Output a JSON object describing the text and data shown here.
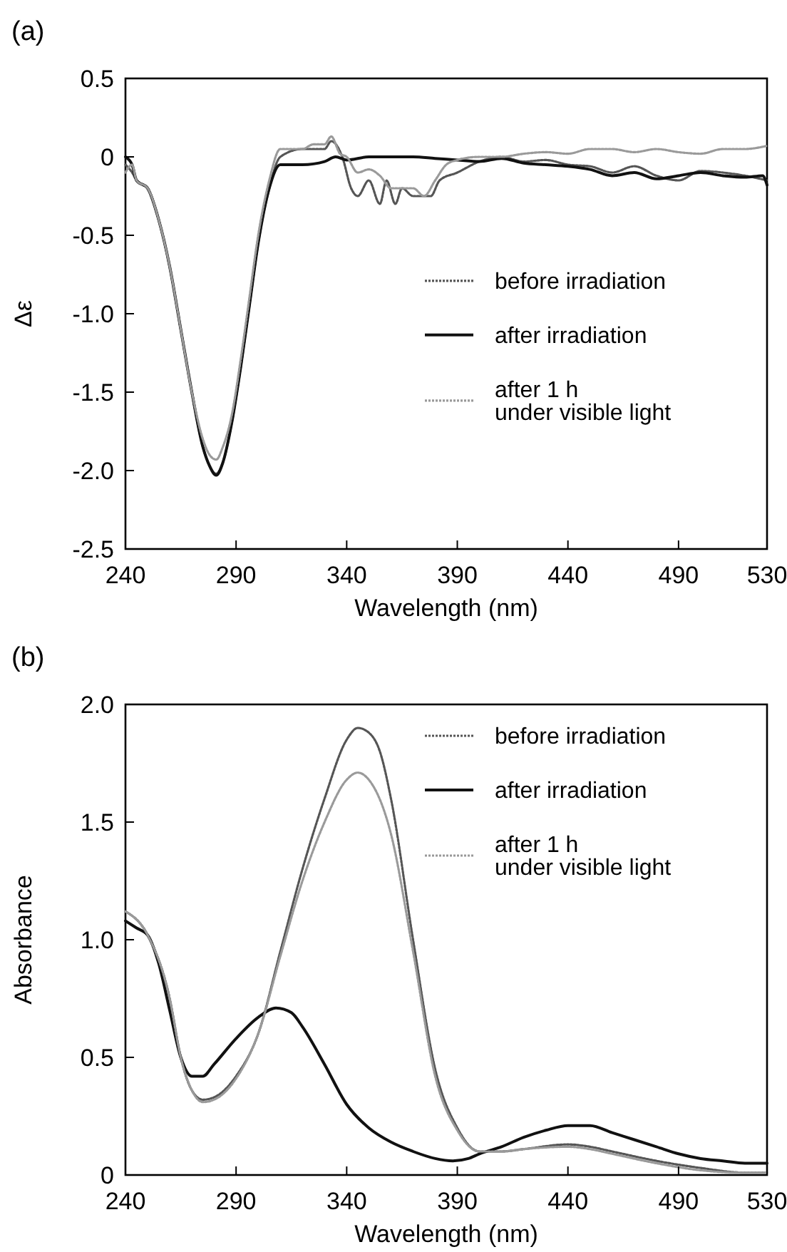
{
  "chart_data": [
    {
      "type": "line",
      "title": "(a)",
      "xlabel": "Wavelength (nm)",
      "ylabel": "Δε",
      "xlim": [
        240,
        530
      ],
      "ylim": [
        -2.5,
        0.5
      ],
      "xticks": [
        240,
        290,
        340,
        390,
        440,
        490,
        530
      ],
      "yticks": [
        0.5,
        0,
        -0.5,
        {
          "value": -1,
          "label": "-1.0"
        },
        -1.5,
        {
          "value": -2,
          "label": "-2.0"
        },
        -2.5
      ],
      "legend": "right",
      "series": [
        {
          "name": "before irradiation",
          "color": "#555555",
          "line_style": "dotted",
          "x": [
            240,
            243,
            245,
            250,
            255,
            260,
            265,
            270,
            275,
            278,
            281,
            284,
            288,
            292,
            296,
            300,
            305,
            310,
            320,
            330,
            333,
            338,
            342,
            345,
            350,
            355,
            358,
            362,
            365,
            370,
            378,
            382,
            390,
            400,
            410,
            420,
            430,
            440,
            450,
            460,
            470,
            480,
            490,
            500,
            510,
            520,
            530
          ],
          "values": [
            -0.05,
            -0.1,
            -0.15,
            -0.2,
            -0.4,
            -0.7,
            -1.1,
            -1.5,
            -1.85,
            -1.97,
            -2.02,
            -1.95,
            -1.7,
            -1.35,
            -0.95,
            -0.55,
            -0.2,
            0,
            0.05,
            0.05,
            0.1,
            0,
            -0.2,
            -0.25,
            -0.15,
            -0.3,
            -0.15,
            -0.3,
            -0.2,
            -0.25,
            -0.25,
            -0.15,
            -0.1,
            -0.03,
            0,
            -0.03,
            -0.02,
            -0.05,
            -0.06,
            -0.1,
            -0.06,
            -0.12,
            -0.15,
            -0.09,
            -0.1,
            -0.12,
            -0.15
          ]
        },
        {
          "name": "after irradiation",
          "color": "#111111",
          "line_style": "solid",
          "x": [
            240,
            243,
            245,
            250,
            255,
            260,
            265,
            270,
            275,
            278,
            281,
            284,
            288,
            292,
            296,
            300,
            305,
            310,
            315,
            320,
            330,
            335,
            340,
            350,
            360,
            370,
            380,
            390,
            400,
            410,
            420,
            430,
            440,
            450,
            460,
            470,
            480,
            490,
            500,
            510,
            520,
            528,
            530
          ],
          "values": [
            0,
            -0.05,
            -0.15,
            -0.2,
            -0.4,
            -0.7,
            -1.1,
            -1.5,
            -1.85,
            -1.97,
            -2.03,
            -1.95,
            -1.7,
            -1.35,
            -0.95,
            -0.55,
            -0.2,
            -0.05,
            -0.05,
            -0.05,
            -0.03,
            0,
            -0.02,
            0,
            0,
            0,
            -0.01,
            -0.02,
            -0.03,
            -0.01,
            -0.04,
            -0.05,
            -0.06,
            -0.08,
            -0.12,
            -0.1,
            -0.14,
            -0.12,
            -0.1,
            -0.12,
            -0.13,
            -0.12,
            -0.18
          ]
        },
        {
          "name": "after 1 h\nunder visible light",
          "color": "#9a9a9a",
          "line_style": "dotted",
          "x": [
            240,
            243,
            245,
            250,
            255,
            260,
            265,
            270,
            275,
            278,
            281,
            284,
            288,
            292,
            296,
            300,
            305,
            310,
            320,
            325,
            330,
            333,
            337,
            340,
            345,
            350,
            355,
            360,
            365,
            370,
            375,
            380,
            385,
            390,
            400,
            410,
            420,
            430,
            440,
            450,
            460,
            470,
            480,
            490,
            500,
            510,
            520,
            530
          ],
          "values": [
            -0.1,
            -0.05,
            -0.15,
            -0.2,
            -0.4,
            -0.7,
            -1.1,
            -1.5,
            -1.8,
            -1.9,
            -1.93,
            -1.85,
            -1.65,
            -1.3,
            -0.9,
            -0.5,
            -0.15,
            0.05,
            0.05,
            0.08,
            0.08,
            0.13,
            0.02,
            0,
            -0.1,
            -0.08,
            -0.12,
            -0.2,
            -0.2,
            -0.2,
            -0.25,
            -0.15,
            -0.05,
            -0.02,
            0,
            0,
            0.02,
            0.03,
            0.02,
            0.05,
            0.05,
            0.03,
            0.05,
            0.03,
            0.02,
            0.05,
            0.05,
            0.07
          ]
        }
      ]
    },
    {
      "type": "line",
      "title": "(b)",
      "xlabel": "Wavelength (nm)",
      "ylabel": "Absorbance",
      "xlim": [
        240,
        530
      ],
      "ylim": [
        0,
        2
      ],
      "xticks": [
        240,
        290,
        340,
        390,
        440,
        490,
        530
      ],
      "yticks": [
        0,
        0.5,
        {
          "value": 1,
          "label": "1.0"
        },
        1.5,
        {
          "value": 2,
          "label": "2.0"
        }
      ],
      "legend": "top right",
      "series": [
        {
          "name": "before irradiation",
          "color": "#555555",
          "line_style": "dotted",
          "x": [
            240,
            250,
            260,
            265,
            270,
            275,
            280,
            290,
            300,
            310,
            320,
            330,
            340,
            345,
            350,
            355,
            360,
            370,
            380,
            390,
            400,
            410,
            420,
            440,
            450,
            460,
            480,
            500,
            520,
            530
          ],
          "values": [
            1.12,
            1.02,
            0.75,
            0.5,
            0.36,
            0.32,
            0.33,
            0.42,
            0.6,
            0.95,
            1.3,
            1.6,
            1.85,
            1.9,
            1.88,
            1.8,
            1.6,
            1,
            0.45,
            0.2,
            0.1,
            0.1,
            0.11,
            0.13,
            0.12,
            0.1,
            0.06,
            0.03,
            0.01,
            0.01
          ]
        },
        {
          "name": "after irradiation",
          "color": "#111111",
          "line_style": "solid",
          "x": [
            240,
            245,
            250,
            255,
            260,
            265,
            270,
            275,
            280,
            290,
            300,
            308,
            315,
            320,
            330,
            340,
            350,
            360,
            370,
            380,
            388,
            395,
            400,
            410,
            420,
            430,
            440,
            450,
            460,
            470,
            480,
            490,
            500,
            510,
            520,
            530
          ],
          "values": [
            1.08,
            1.05,
            1.02,
            0.9,
            0.7,
            0.5,
            0.42,
            0.42,
            0.47,
            0.58,
            0.67,
            0.71,
            0.69,
            0.63,
            0.47,
            0.3,
            0.2,
            0.14,
            0.1,
            0.07,
            0.06,
            0.07,
            0.09,
            0.12,
            0.16,
            0.19,
            0.21,
            0.21,
            0.18,
            0.15,
            0.12,
            0.09,
            0.07,
            0.06,
            0.05,
            0.05
          ]
        },
        {
          "name": "after 1 h\nunder visible light",
          "color": "#9a9a9a",
          "line_style": "dotted",
          "x": [
            240,
            250,
            260,
            265,
            270,
            275,
            280,
            290,
            300,
            310,
            320,
            330,
            340,
            345,
            350,
            360,
            370,
            380,
            390,
            400,
            410,
            420,
            440,
            450,
            460,
            480,
            500,
            520,
            530
          ],
          "values": [
            1.12,
            1.02,
            0.75,
            0.5,
            0.36,
            0.31,
            0.32,
            0.41,
            0.6,
            0.93,
            1.25,
            1.5,
            1.68,
            1.71,
            1.68,
            1.45,
            0.95,
            0.42,
            0.19,
            0.1,
            0.1,
            0.11,
            0.12,
            0.11,
            0.09,
            0.05,
            0.02,
            0.01,
            0.01
          ]
        }
      ]
    }
  ]
}
